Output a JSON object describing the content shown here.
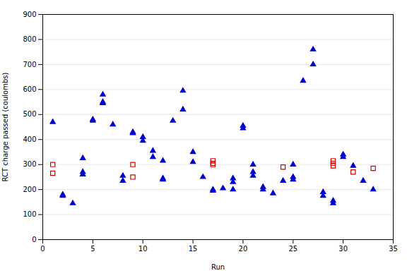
{
  "chart_data": {
    "type": "scatter",
    "xlabel": "Run",
    "ylabel": "RCT charge passed (coulombs)",
    "xlim": [
      0,
      35
    ],
    "ylim": [
      0,
      900
    ],
    "xticks": [
      0,
      5,
      10,
      15,
      20,
      25,
      30,
      35
    ],
    "yticks": [
      0,
      100,
      200,
      300,
      400,
      500,
      600,
      700,
      800,
      900
    ],
    "grid": "y",
    "series": [
      {
        "color": "#0000CC",
        "marker": "triangle",
        "x": [
          1,
          2,
          2,
          3,
          4,
          4,
          4,
          5,
          5,
          6,
          6,
          6,
          7,
          8,
          8,
          9,
          9,
          10,
          10,
          11,
          11,
          12,
          12,
          12,
          13,
          14,
          14,
          15,
          15,
          16,
          17,
          17,
          18,
          19,
          19,
          19,
          20,
          20,
          21,
          21,
          21,
          22,
          22,
          23,
          24,
          25,
          25,
          25,
          26,
          27,
          27,
          28,
          28,
          29,
          29,
          30,
          30,
          31,
          32,
          33
        ],
        "values": [
          470,
          180,
          175,
          145,
          260,
          270,
          325,
          480,
          475,
          580,
          550,
          545,
          460,
          235,
          255,
          430,
          425,
          395,
          410,
          355,
          330,
          315,
          245,
          240,
          475,
          595,
          520,
          350,
          310,
          250,
          195,
          200,
          205,
          245,
          230,
          200,
          455,
          445,
          300,
          270,
          255,
          210,
          200,
          185,
          235,
          300,
          250,
          240,
          635,
          760,
          700,
          190,
          175,
          155,
          145,
          340,
          330,
          295,
          235,
          200
        ]
      },
      {
        "color": "#CC0000",
        "marker": "square-open",
        "x": [
          1,
          1,
          9,
          9,
          17,
          17,
          17,
          24,
          29,
          29,
          29,
          31,
          33
        ],
        "values": [
          300,
          265,
          300,
          250,
          315,
          305,
          300,
          290,
          315,
          305,
          295,
          270,
          285
        ]
      }
    ]
  }
}
